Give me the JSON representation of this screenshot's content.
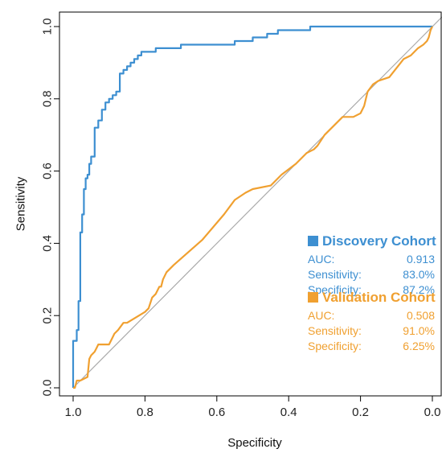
{
  "chart_data": {
    "type": "line",
    "title": "",
    "xlabel": "Specificity",
    "ylabel": "Sensitivity",
    "x_reversed": true,
    "xlim": [
      1.0,
      0.0
    ],
    "ylim": [
      0.0,
      1.0
    ],
    "x_ticks": [
      "1.0",
      "0.8",
      "0.6",
      "0.4",
      "0.2",
      "0.0"
    ],
    "y_ticks": [
      "0.0",
      "0.2",
      "0.4",
      "0.6",
      "0.8",
      "1.0"
    ],
    "grid": false,
    "reference_line": {
      "from": [
        1.0,
        0.0
      ],
      "to": [
        0.0,
        1.0
      ],
      "color": "#aaaaaa"
    },
    "legend_position": "bottom-right",
    "series": [
      {
        "name": "Discovery Cohort",
        "color": "#3d8fd1",
        "metrics": [
          {
            "label": "AUC:",
            "value": "0.913"
          },
          {
            "label": "Sensitivity:",
            "value": "83.0%"
          },
          {
            "label": "Specificity:",
            "value": "87.2%"
          }
        ],
        "x": [
          1.0,
          1.0,
          0.99,
          0.99,
          0.985,
          0.985,
          0.98,
          0.98,
          0.975,
          0.975,
          0.97,
          0.97,
          0.965,
          0.965,
          0.96,
          0.96,
          0.955,
          0.955,
          0.95,
          0.95,
          0.94,
          0.94,
          0.93,
          0.93,
          0.92,
          0.92,
          0.91,
          0.91,
          0.9,
          0.9,
          0.89,
          0.89,
          0.88,
          0.88,
          0.87,
          0.87,
          0.86,
          0.86,
          0.85,
          0.85,
          0.84,
          0.84,
          0.83,
          0.83,
          0.82,
          0.82,
          0.81,
          0.81,
          0.8,
          0.8,
          0.79,
          0.79,
          0.77,
          0.77,
          0.7,
          0.7,
          0.55,
          0.55,
          0.5,
          0.5,
          0.47,
          0.47,
          0.46,
          0.46,
          0.45,
          0.45,
          0.43,
          0.43,
          0.38,
          0.38,
          0.34,
          0.34,
          0.31,
          0.31,
          0.15,
          0.1,
          0.05,
          0.0
        ],
        "y": [
          0.0,
          0.13,
          0.13,
          0.16,
          0.16,
          0.24,
          0.24,
          0.43,
          0.43,
          0.48,
          0.48,
          0.55,
          0.55,
          0.58,
          0.58,
          0.59,
          0.59,
          0.62,
          0.62,
          0.64,
          0.64,
          0.72,
          0.72,
          0.74,
          0.74,
          0.77,
          0.77,
          0.79,
          0.79,
          0.8,
          0.8,
          0.81,
          0.81,
          0.82,
          0.82,
          0.87,
          0.87,
          0.88,
          0.88,
          0.89,
          0.89,
          0.9,
          0.9,
          0.91,
          0.91,
          0.92,
          0.92,
          0.93,
          0.93,
          0.93,
          0.93,
          0.93,
          0.93,
          0.94,
          0.94,
          0.95,
          0.95,
          0.96,
          0.96,
          0.97,
          0.97,
          0.97,
          0.97,
          0.98,
          0.98,
          0.98,
          0.98,
          0.99,
          0.99,
          0.99,
          0.99,
          1.0,
          1.0,
          1.0,
          1.0,
          1.0,
          1.0,
          1.0
        ]
      },
      {
        "name": "Validation Cohort",
        "color": "#f0a030",
        "metrics": [
          {
            "label": "AUC:",
            "value": "0.508"
          },
          {
            "label": "Sensitivity:",
            "value": "91.0%"
          },
          {
            "label": "Specificity:",
            "value": "6.25%"
          }
        ],
        "x": [
          1.0,
          0.995,
          0.99,
          0.98,
          0.96,
          0.955,
          0.95,
          0.94,
          0.935,
          0.93,
          0.9,
          0.89,
          0.885,
          0.875,
          0.86,
          0.85,
          0.8,
          0.79,
          0.78,
          0.77,
          0.76,
          0.755,
          0.75,
          0.74,
          0.72,
          0.64,
          0.58,
          0.55,
          0.52,
          0.5,
          0.45,
          0.42,
          0.38,
          0.35,
          0.33,
          0.32,
          0.3,
          0.25,
          0.22,
          0.2,
          0.19,
          0.18,
          0.165,
          0.15,
          0.12,
          0.08,
          0.06,
          0.04,
          0.025,
          0.015,
          0.01,
          0.005,
          0.0
        ],
        "y": [
          0.0,
          0.0,
          0.02,
          0.02,
          0.03,
          0.08,
          0.09,
          0.1,
          0.11,
          0.12,
          0.12,
          0.14,
          0.15,
          0.16,
          0.18,
          0.18,
          0.21,
          0.22,
          0.25,
          0.26,
          0.28,
          0.28,
          0.3,
          0.32,
          0.34,
          0.41,
          0.48,
          0.52,
          0.54,
          0.55,
          0.56,
          0.59,
          0.62,
          0.65,
          0.66,
          0.67,
          0.7,
          0.75,
          0.75,
          0.76,
          0.78,
          0.82,
          0.84,
          0.85,
          0.86,
          0.91,
          0.92,
          0.94,
          0.95,
          0.96,
          0.97,
          0.99,
          1.0
        ]
      }
    ]
  }
}
